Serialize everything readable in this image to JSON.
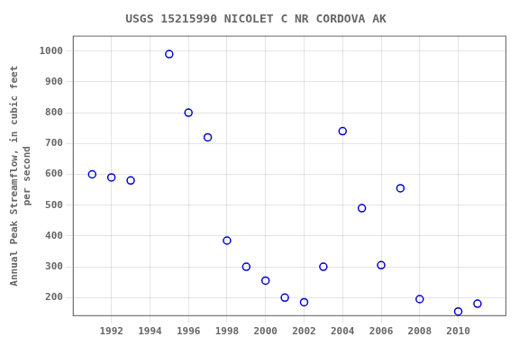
{
  "chart_data": {
    "type": "scatter",
    "title": "USGS 15215990 NICOLET C NR CORDOVA AK",
    "y_label": "Annual Peak Streamflow, in cubic feet\nper second",
    "x": [
      1991,
      1992,
      1993,
      1995,
      1996,
      1997,
      1998,
      1999,
      2000,
      2001,
      2002,
      2003,
      2004,
      2005,
      2006,
      2007,
      2008,
      2010,
      2011
    ],
    "values": [
      600,
      590,
      580,
      990,
      800,
      720,
      385,
      300,
      255,
      200,
      185,
      300,
      740,
      490,
      305,
      555,
      195,
      155,
      180
    ],
    "color": "#0000CC",
    "marker": "circle",
    "xlim": [
      1990.0,
      2012.5
    ],
    "ylim": [
      140,
      1050
    ],
    "xticks": [
      1992,
      1994,
      1996,
      1998,
      2000,
      2002,
      2004,
      2006,
      2008,
      2010
    ],
    "yticks": [
      200,
      300,
      400,
      500,
      600,
      700,
      800,
      900,
      1000
    ],
    "grid": true
  }
}
